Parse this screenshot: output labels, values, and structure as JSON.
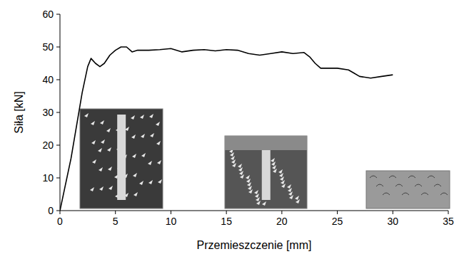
{
  "chart_data": {
    "type": "line",
    "x_label": "Przemieszczenie [mm]",
    "y_label": "Siła [kN]",
    "x": [
      0,
      0.5,
      1,
      1.5,
      2,
      2.5,
      2.8,
      3.2,
      3.6,
      4,
      4.5,
      5,
      5.5,
      6,
      6.5,
      7,
      8,
      9,
      10,
      11,
      12,
      13,
      14,
      15,
      16,
      17,
      18,
      19,
      20,
      21,
      22,
      22.5,
      23,
      23.5,
      24,
      25,
      26,
      26.5,
      27,
      28,
      29,
      30
    ],
    "values": [
      0,
      8,
      16,
      26,
      36,
      44,
      46.5,
      45,
      44,
      45,
      47.5,
      49,
      50,
      50,
      48.5,
      49,
      49,
      49.2,
      49.5,
      48.5,
      49,
      49.2,
      48.8,
      49.2,
      49,
      48,
      47.5,
      48,
      48.5,
      48,
      48.3,
      47,
      45,
      43.5,
      43.5,
      43.5,
      43,
      42,
      41,
      40.5,
      41,
      41.5
    ],
    "color": "#000000",
    "xlim": [
      0,
      35
    ],
    "ylim": [
      0,
      60
    ],
    "xticks": [
      0,
      5,
      10,
      15,
      20,
      25,
      30,
      35
    ],
    "yticks": [
      0,
      10,
      20,
      30,
      40,
      50,
      60
    ],
    "grid": false
  }
}
